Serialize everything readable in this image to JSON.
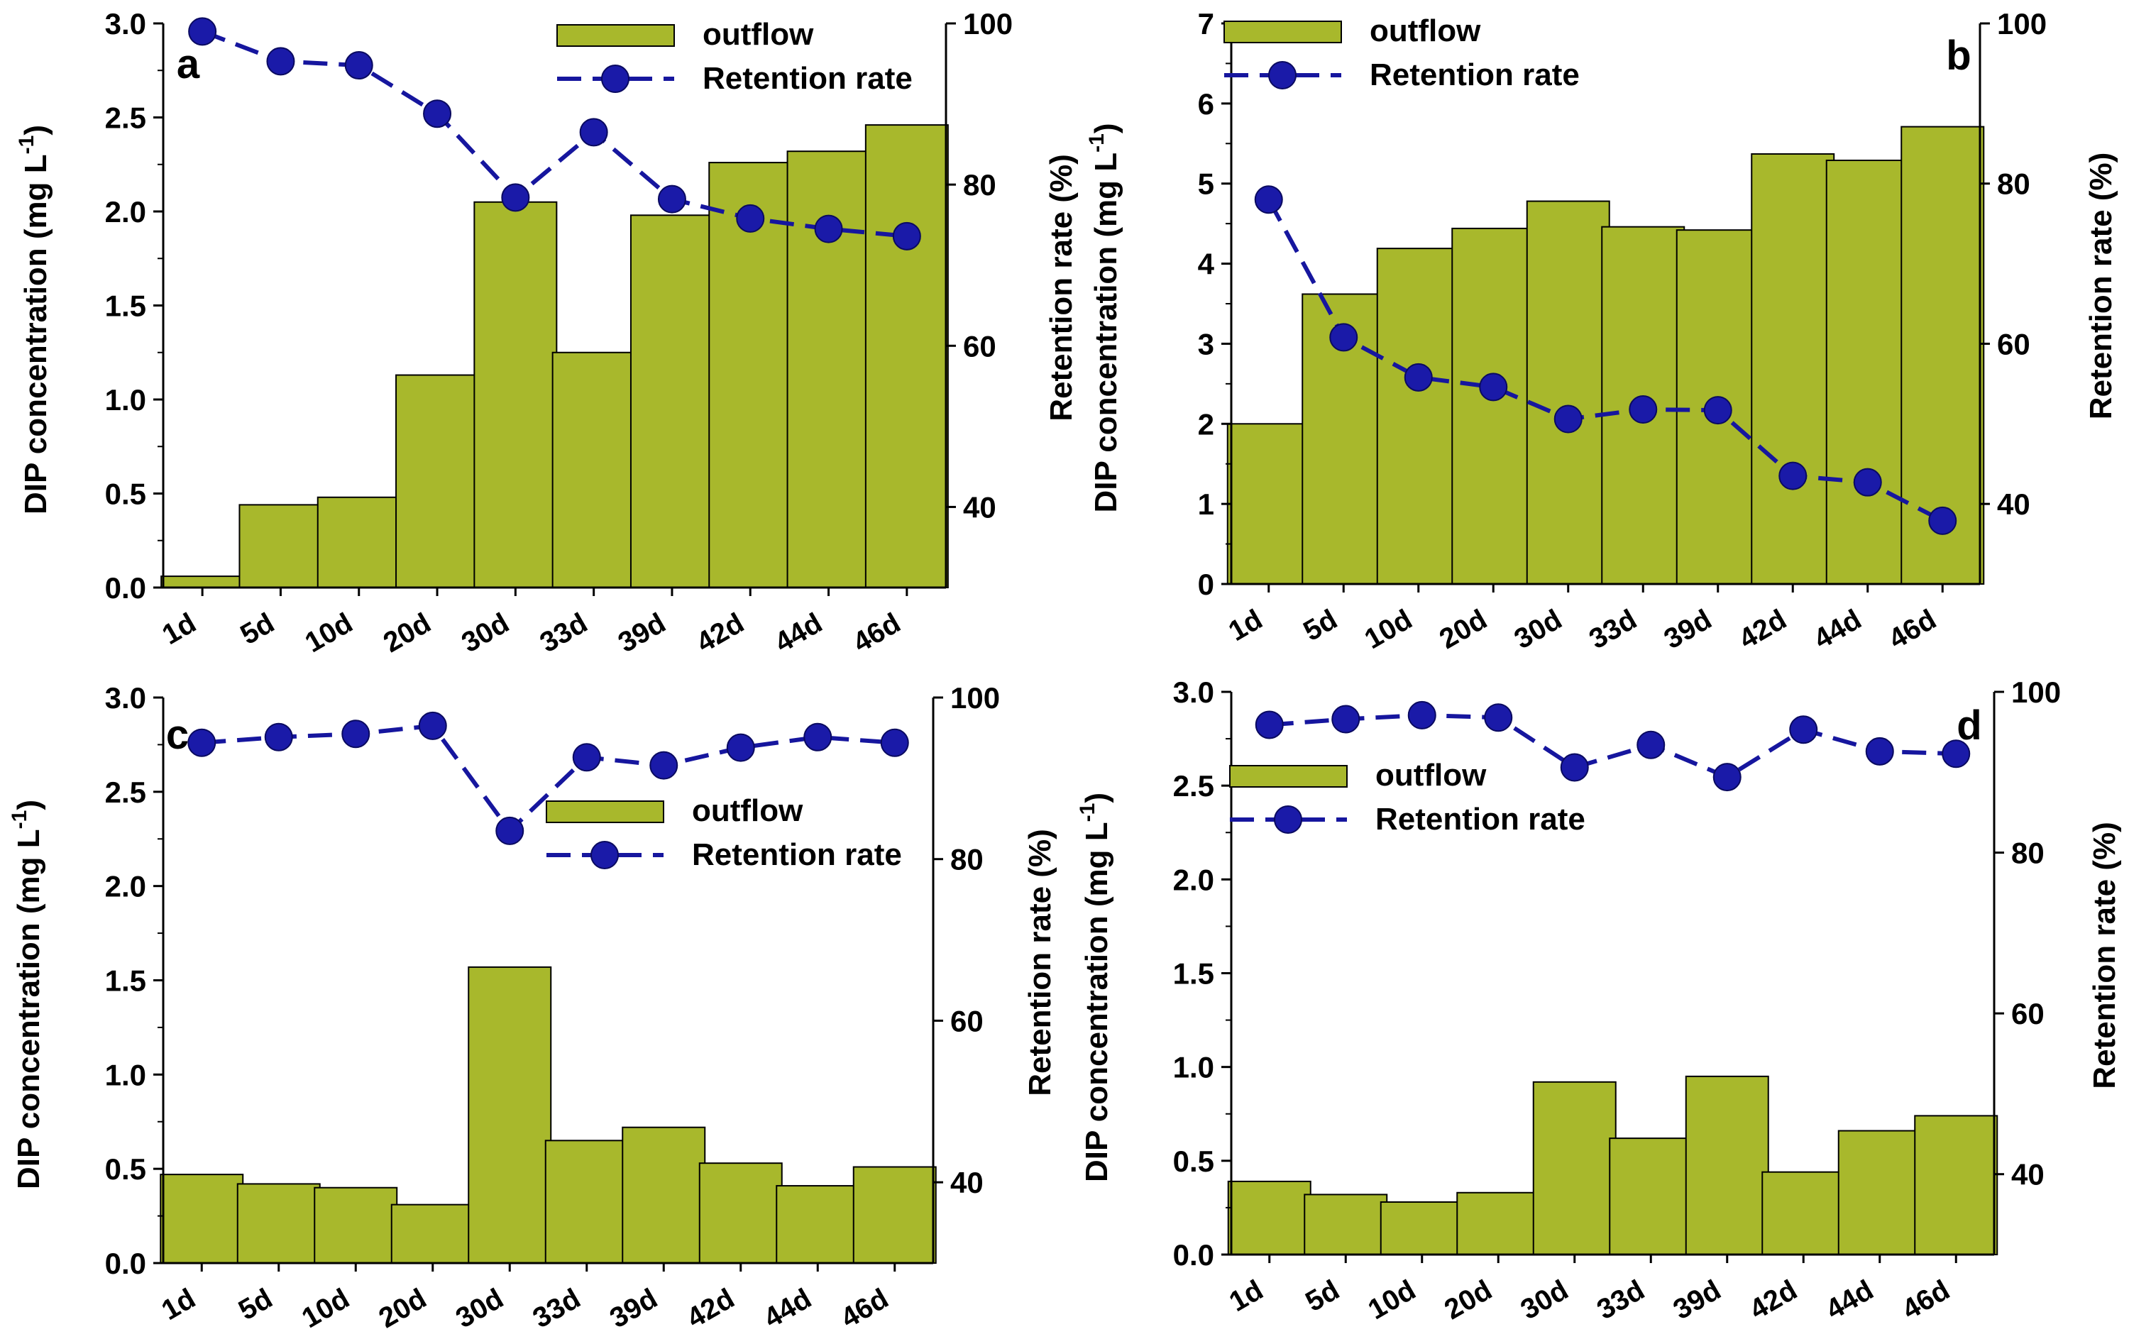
{
  "figure": {
    "panels_count": 4
  },
  "colors": {
    "bar_fill": "#a8b82c",
    "bar_stroke": "#000000",
    "line_color": "#16169e",
    "marker_fill": "#1a1aa8"
  },
  "chart_data": [
    {
      "type": "bar",
      "panel_label": "a",
      "categories": [
        "1d",
        "5d",
        "10d",
        "20d",
        "30d",
        "33d",
        "39d",
        "42d",
        "44d",
        "46d"
      ],
      "series": [
        {
          "name": "outflow",
          "type": "bar",
          "axis": "left",
          "values": [
            0.06,
            0.44,
            0.48,
            1.13,
            2.05,
            1.25,
            1.98,
            2.26,
            2.32,
            2.46
          ]
        },
        {
          "name": "Retention rate",
          "type": "line",
          "axis": "right",
          "values": [
            99.0,
            95.3,
            94.8,
            88.8,
            78.4,
            86.5,
            78.2,
            75.8,
            74.5,
            73.6
          ]
        }
      ],
      "ylabel_prefix": "DIP concentration (mg L",
      "ylabel_sup": "-1",
      "ylabel_suffix": ")",
      "y2label": "Retention rate (%)",
      "ylim": [
        0,
        3.0
      ],
      "yticks": [
        "0.0",
        "0.5",
        "1.0",
        "1.5",
        "2.0",
        "2.5",
        "3.0"
      ],
      "y2lim": [
        30,
        100
      ],
      "y2ticks": [
        "40",
        "60",
        "80",
        "100"
      ],
      "legend": {
        "bar": "outflow",
        "line": "Retention rate",
        "position": "top-right"
      },
      "grid": false
    },
    {
      "type": "bar",
      "panel_label": "b",
      "categories": [
        "1d",
        "5d",
        "10d",
        "20d",
        "30d",
        "33d",
        "39d",
        "42d",
        "44d",
        "46d"
      ],
      "series": [
        {
          "name": "outflow",
          "type": "bar",
          "axis": "left",
          "values": [
            2.0,
            3.62,
            4.19,
            4.44,
            4.78,
            4.46,
            4.42,
            5.37,
            5.29,
            5.71
          ]
        },
        {
          "name": "Retention rate",
          "type": "line",
          "axis": "right",
          "values": [
            78.0,
            60.8,
            55.8,
            54.6,
            50.6,
            51.8,
            51.7,
            43.5,
            42.7,
            37.9
          ]
        }
      ],
      "ylabel_prefix": "DIP concentration (mg L",
      "ylabel_sup": "-1",
      "ylabel_suffix": ")",
      "y2label": "Retention rate (%)",
      "ylim": [
        0,
        7
      ],
      "yticks": [
        "0",
        "1",
        "2",
        "3",
        "4",
        "5",
        "6",
        "7"
      ],
      "y2lim": [
        30,
        100
      ],
      "y2ticks": [
        "40",
        "60",
        "80",
        "100"
      ],
      "legend": {
        "bar": "outflow",
        "line": "Retention rate",
        "position": "top-left"
      },
      "grid": false
    },
    {
      "type": "bar",
      "panel_label": "c",
      "categories": [
        "1d",
        "5d",
        "10d",
        "20d",
        "30d",
        "33d",
        "39d",
        "42d",
        "44d",
        "46d"
      ],
      "series": [
        {
          "name": "outflow",
          "type": "bar",
          "axis": "left",
          "values": [
            0.47,
            0.42,
            0.4,
            0.31,
            1.57,
            0.65,
            0.72,
            0.53,
            0.41,
            0.51
          ]
        },
        {
          "name": "Retention rate",
          "type": "line",
          "axis": "right",
          "values": [
            94.4,
            95.1,
            95.5,
            96.5,
            83.5,
            92.6,
            91.6,
            93.8,
            95.1,
            94.4
          ]
        }
      ],
      "ylabel_prefix": "DIP concentration (mg L",
      "ylabel_sup": "-1",
      "ylabel_suffix": ")",
      "y2label": "Retention rate (%)",
      "ylim": [
        0,
        3.0
      ],
      "yticks": [
        "0.0",
        "0.5",
        "1.0",
        "1.5",
        "2.0",
        "2.5",
        "3.0"
      ],
      "y2lim": [
        30,
        100
      ],
      "y2ticks": [
        "40",
        "60",
        "80",
        "100"
      ],
      "legend": {
        "bar": "outflow",
        "line": "Retention rate",
        "position": "center-right"
      },
      "grid": false
    },
    {
      "type": "bar",
      "panel_label": "d",
      "categories": [
        "1d",
        "5d",
        "10d",
        "20d",
        "30d",
        "33d",
        "39d",
        "42d",
        "44d",
        "46d"
      ],
      "series": [
        {
          "name": "outflow",
          "type": "bar",
          "axis": "left",
          "values": [
            0.39,
            0.32,
            0.28,
            0.33,
            0.92,
            0.62,
            0.95,
            0.44,
            0.66,
            0.74
          ]
        },
        {
          "name": "Retention rate",
          "type": "line",
          "axis": "right",
          "values": [
            95.9,
            96.6,
            97.1,
            96.8,
            90.6,
            93.4,
            89.4,
            95.3,
            92.6,
            92.3
          ]
        }
      ],
      "ylabel_prefix": "DIP concentration (mg L",
      "ylabel_sup": "-1",
      "ylabel_suffix": ")",
      "y2label": "Retention rate (%)",
      "ylim": [
        0,
        3.0
      ],
      "yticks": [
        "0.0",
        "0.5",
        "1.0",
        "1.5",
        "2.0",
        "2.5",
        "3.0"
      ],
      "y2lim": [
        30,
        100
      ],
      "y2ticks": [
        "40",
        "60",
        "80",
        "100"
      ],
      "legend": {
        "bar": "outflow",
        "line": "Retention rate",
        "position": "top-left"
      },
      "grid": false
    }
  ]
}
